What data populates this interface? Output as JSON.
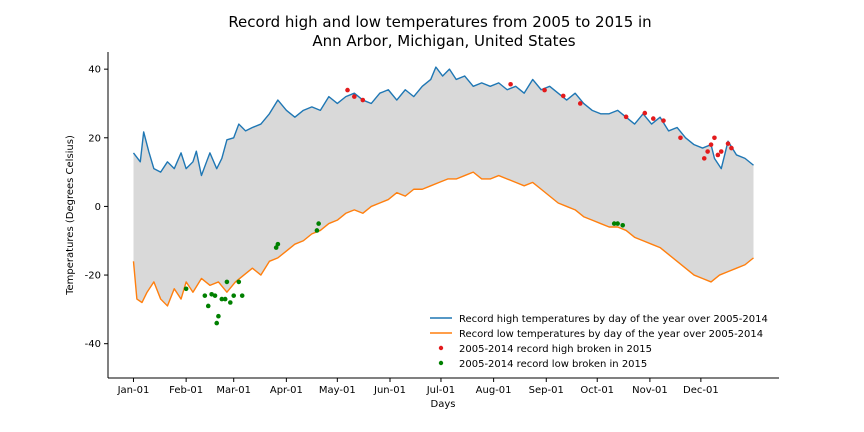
{
  "chart_data": {
    "type": "line",
    "title": "Record high and low temperatures from 2005 to 2015 in Ann Arbor, Michigan, United States",
    "title_lines": [
      "Record high and low temperatures from 2005 to 2015 in",
      "Ann Arbor, Michigan, United States"
    ],
    "xlabel": "Days",
    "ylabel": "Temperatures (Degrees Celsius)",
    "xlim": [
      -15,
      380
    ],
    "ylim": [
      -50,
      45
    ],
    "x_ticks": [
      {
        "value": 0,
        "label": "Jan-01"
      },
      {
        "value": 31,
        "label": "Feb-01"
      },
      {
        "value": 59,
        "label": "Mar-01"
      },
      {
        "value": 90,
        "label": "Apr-01"
      },
      {
        "value": 120,
        "label": "May-01"
      },
      {
        "value": 151,
        "label": "Jun-01"
      },
      {
        "value": 181,
        "label": "Jul-01"
      },
      {
        "value": 212,
        "label": "Aug-01"
      },
      {
        "value": 243,
        "label": "Sep-01"
      },
      {
        "value": 273,
        "label": "Oct-01"
      },
      {
        "value": 304,
        "label": "Nov-01"
      },
      {
        "value": 334,
        "label": "Dec-01"
      }
    ],
    "y_ticks": [
      -40,
      -20,
      0,
      20,
      40
    ],
    "grid": false,
    "legend_position": "lower-right",
    "fill_between": {
      "color": "#d9d9d9"
    },
    "series": [
      {
        "name": "Record high temperatures by day of the year over 2005-2014",
        "kind": "line",
        "color": "#1f77b4",
        "points": [
          [
            0,
            15.6
          ],
          [
            4,
            13
          ],
          [
            6,
            21.7
          ],
          [
            9,
            16
          ],
          [
            12,
            11
          ],
          [
            16,
            10
          ],
          [
            20,
            13
          ],
          [
            24,
            11
          ],
          [
            28,
            15.6
          ],
          [
            31,
            11
          ],
          [
            35,
            13
          ],
          [
            37,
            16.1
          ],
          [
            40,
            9
          ],
          [
            43,
            13
          ],
          [
            45,
            15.6
          ],
          [
            49,
            11
          ],
          [
            52,
            14
          ],
          [
            55,
            19.4
          ],
          [
            59,
            20
          ],
          [
            62,
            24
          ],
          [
            66,
            22
          ],
          [
            70,
            23
          ],
          [
            75,
            24
          ],
          [
            80,
            27
          ],
          [
            85,
            31
          ],
          [
            90,
            28
          ],
          [
            95,
            26
          ],
          [
            100,
            28
          ],
          [
            105,
            29
          ],
          [
            110,
            28
          ],
          [
            115,
            32
          ],
          [
            120,
            30
          ],
          [
            125,
            32
          ],
          [
            130,
            33
          ],
          [
            135,
            31
          ],
          [
            140,
            30
          ],
          [
            145,
            33
          ],
          [
            150,
            34
          ],
          [
            155,
            31
          ],
          [
            160,
            34
          ],
          [
            165,
            32
          ],
          [
            170,
            35
          ],
          [
            175,
            37
          ],
          [
            178,
            40.6
          ],
          [
            182,
            38
          ],
          [
            186,
            40
          ],
          [
            190,
            37
          ],
          [
            195,
            38
          ],
          [
            200,
            35
          ],
          [
            205,
            36
          ],
          [
            210,
            35
          ],
          [
            215,
            36
          ],
          [
            220,
            34
          ],
          [
            225,
            35
          ],
          [
            230,
            33
          ],
          [
            235,
            37
          ],
          [
            240,
            34
          ],
          [
            245,
            35
          ],
          [
            250,
            33
          ],
          [
            255,
            31
          ],
          [
            260,
            33
          ],
          [
            265,
            30
          ],
          [
            270,
            28
          ],
          [
            275,
            27
          ],
          [
            280,
            27
          ],
          [
            285,
            28
          ],
          [
            290,
            26
          ],
          [
            295,
            24
          ],
          [
            300,
            27
          ],
          [
            305,
            24
          ],
          [
            310,
            26
          ],
          [
            315,
            22
          ],
          [
            320,
            23
          ],
          [
            325,
            20
          ],
          [
            330,
            18
          ],
          [
            335,
            17
          ],
          [
            340,
            18
          ],
          [
            342,
            14
          ],
          [
            346,
            11
          ],
          [
            350,
            19
          ],
          [
            355,
            15
          ],
          [
            360,
            14
          ],
          [
            365,
            12
          ]
        ]
      },
      {
        "name": "Record low temperatures by day of the year over 2005-2014",
        "kind": "line",
        "color": "#ff7f0e",
        "points": [
          [
            0,
            -16
          ],
          [
            2,
            -27
          ],
          [
            5,
            -28
          ],
          [
            8,
            -25
          ],
          [
            12,
            -22
          ],
          [
            16,
            -27
          ],
          [
            20,
            -29
          ],
          [
            24,
            -24
          ],
          [
            28,
            -27
          ],
          [
            31,
            -22
          ],
          [
            35,
            -25
          ],
          [
            40,
            -21
          ],
          [
            45,
            -23
          ],
          [
            50,
            -22
          ],
          [
            55,
            -25
          ],
          [
            60,
            -22
          ],
          [
            65,
            -20
          ],
          [
            70,
            -18
          ],
          [
            75,
            -20
          ],
          [
            80,
            -16
          ],
          [
            85,
            -15
          ],
          [
            90,
            -13
          ],
          [
            95,
            -11
          ],
          [
            100,
            -10
          ],
          [
            105,
            -8
          ],
          [
            110,
            -7
          ],
          [
            115,
            -5
          ],
          [
            120,
            -4
          ],
          [
            125,
            -2
          ],
          [
            130,
            -1
          ],
          [
            135,
            -2
          ],
          [
            140,
            0
          ],
          [
            145,
            1
          ],
          [
            150,
            2
          ],
          [
            155,
            4
          ],
          [
            160,
            3
          ],
          [
            165,
            5
          ],
          [
            170,
            5
          ],
          [
            175,
            6
          ],
          [
            180,
            7
          ],
          [
            185,
            8
          ],
          [
            190,
            8
          ],
          [
            195,
            9
          ],
          [
            200,
            10
          ],
          [
            205,
            8
          ],
          [
            210,
            8
          ],
          [
            215,
            9
          ],
          [
            220,
            8
          ],
          [
            225,
            7
          ],
          [
            230,
            6
          ],
          [
            235,
            7
          ],
          [
            240,
            5
          ],
          [
            245,
            3
          ],
          [
            250,
            1
          ],
          [
            255,
            0
          ],
          [
            260,
            -1
          ],
          [
            265,
            -3
          ],
          [
            270,
            -4
          ],
          [
            275,
            -5
          ],
          [
            280,
            -6
          ],
          [
            285,
            -6
          ],
          [
            290,
            -7
          ],
          [
            295,
            -9
          ],
          [
            300,
            -10
          ],
          [
            305,
            -11
          ],
          [
            310,
            -12
          ],
          [
            315,
            -14
          ],
          [
            320,
            -16
          ],
          [
            325,
            -18
          ],
          [
            330,
            -20
          ],
          [
            335,
            -21
          ],
          [
            340,
            -22
          ],
          [
            345,
            -20
          ],
          [
            350,
            -19
          ],
          [
            355,
            -18
          ],
          [
            360,
            -17
          ],
          [
            365,
            -15
          ]
        ]
      },
      {
        "name": "2005-2014 record high broken in 2015",
        "kind": "scatter",
        "color": "#e31a1c",
        "points": [
          [
            126,
            33.9
          ],
          [
            130,
            32
          ],
          [
            135,
            31
          ],
          [
            222,
            35.6
          ],
          [
            242,
            33.9
          ],
          [
            253,
            32.2
          ],
          [
            263,
            30
          ],
          [
            290,
            26.1
          ],
          [
            301,
            27.2
          ],
          [
            306,
            25.6
          ],
          [
            312,
            25
          ],
          [
            322,
            20
          ],
          [
            336,
            14
          ],
          [
            338,
            16
          ],
          [
            340,
            18
          ],
          [
            342,
            20
          ],
          [
            344,
            15
          ],
          [
            346,
            16
          ],
          [
            350,
            18.3
          ],
          [
            352,
            17
          ]
        ]
      },
      {
        "name": "2005-2014 record low broken in 2015",
        "kind": "scatter",
        "color": "#008000",
        "points": [
          [
            31,
            -24
          ],
          [
            42,
            -26
          ],
          [
            44,
            -29
          ],
          [
            46,
            -25.6
          ],
          [
            48,
            -26
          ],
          [
            49,
            -34
          ],
          [
            50,
            -32
          ],
          [
            52,
            -27
          ],
          [
            54,
            -27
          ],
          [
            55,
            -22
          ],
          [
            57,
            -28
          ],
          [
            59,
            -26
          ],
          [
            62,
            -22
          ],
          [
            64,
            -26
          ],
          [
            84,
            -12
          ],
          [
            85,
            -11
          ],
          [
            108,
            -7
          ],
          [
            109,
            -5
          ],
          [
            283,
            -5
          ],
          [
            285,
            -5
          ],
          [
            288,
            -5.5
          ]
        ]
      }
    ]
  }
}
